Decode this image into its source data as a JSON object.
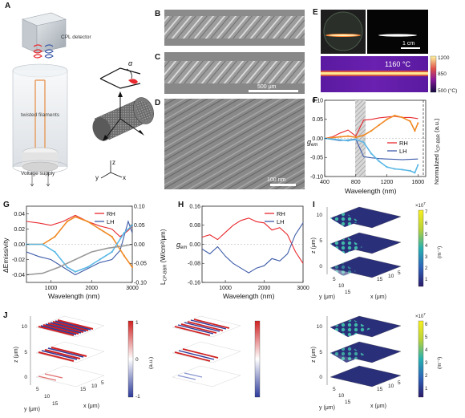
{
  "panel_letters": [
    "A",
    "B",
    "C",
    "D",
    "E",
    "F",
    "G",
    "H",
    "I",
    "J"
  ],
  "panelA": {
    "detector": "CPL detector",
    "filaments": "twisted filaments",
    "supply": "Voltage supply",
    "alpha": "α",
    "axes": {
      "z": "z",
      "y": "y",
      "x": "x"
    }
  },
  "panelC": {
    "scale": "500 μm"
  },
  "panelD": {
    "scale": "100 nm"
  },
  "panelE": {
    "scale": "1 cm",
    "temp": "1160 °C",
    "colorbar": [
      "1200",
      "850",
      "500 (°C)"
    ]
  },
  "panelF": {
    "ylabel": "g",
    "ylabel_sub": "em",
    "y2label": "Normalized I",
    "y2label_sub": "CP-BBR",
    "y2label_tail": " (a.u.)",
    "xlabel": "Wavelength (nm)",
    "legend": [
      "RH",
      "LH"
    ],
    "xticks": [
      "400",
      "800",
      "1200",
      "1600"
    ],
    "yticks": [
      "0.10",
      "0.05",
      "0.00",
      "-0.05",
      "-0.10"
    ]
  },
  "panelG": {
    "ylabel": "ΔEmissivity",
    "y2label": "L",
    "y2label_sub": "CP-BBR",
    "y2label_tail": " (W/cm²/μm)",
    "xlabel": "Wavelength (nm)",
    "legend": [
      "RH",
      "LH"
    ],
    "xticks": [
      "1000",
      "2000",
      "3000"
    ],
    "yticks": [
      "0.04",
      "0.02",
      "0.00",
      "-0.02",
      "-0.04"
    ],
    "y2ticks": [
      "0.10",
      "0.05",
      "0.00",
      "-0.05",
      "-0.10"
    ]
  },
  "panelH": {
    "ylabel": "g",
    "ylabel_sub": "em",
    "xlabel": "Wavelength (nm)",
    "legend": [
      "RH",
      "LH"
    ],
    "xticks": [
      "1000",
      "2000",
      "3000"
    ],
    "yticks": [
      "0.16",
      "0.08",
      "0.00",
      "-0.08",
      "-0.16"
    ]
  },
  "panelI": {
    "zlabel": "z (μm)",
    "ylabel": "y (μm)",
    "xlabel": "x (μm)",
    "zticks": [
      "10",
      "5",
      "0"
    ],
    "yticks": [
      "5",
      "10",
      "15"
    ],
    "xticks": [
      "5",
      "10",
      "15"
    ],
    "exponent": "×10",
    "exponent_sup": "7",
    "unit": "(m⁻¹)",
    "cb_ticks": [
      "7",
      "6",
      "5",
      "4",
      "3",
      "2",
      "1"
    ]
  },
  "panelJ": {
    "zlabel": "z (μm)",
    "ylabel": "y (μm)",
    "xlabel": "x (μm)",
    "zticks": [
      "10",
      "5",
      "0"
    ],
    "yticks": [
      "5",
      "10",
      "15"
    ],
    "xticks": [
      "5",
      "10",
      "15"
    ],
    "unit": "(a.u.)",
    "cb_ticks": [
      "1",
      "0",
      "-1"
    ],
    "exponent": "×10",
    "exponent_sup": "7",
    "unit2": "(m⁻¹)",
    "cb2_ticks": [
      "6",
      "5",
      "4",
      "3",
      "2",
      "1"
    ]
  },
  "colors": {
    "rh": "#e8292e",
    "lh": "#3d5ba9",
    "orange": "#f08a24",
    "lightblue": "#5bb8e6",
    "gray": "#9a9a9a"
  },
  "chart_data": [
    {
      "panel": "F",
      "type": "line",
      "xlabel": "Wavelength (nm)",
      "ylabel": "g_em",
      "xlim": [
        400,
        1700
      ],
      "ylim": [
        -0.1,
        0.1
      ],
      "series": [
        {
          "name": "RH",
          "x": [
            400,
            500,
            600,
            700,
            800,
            900,
            1000,
            1100,
            1200,
            1300,
            1400,
            1500,
            1600
          ],
          "y": [
            0.0,
            0.004,
            0.014,
            0.022,
            0.006,
            0.048,
            0.05,
            0.054,
            0.056,
            0.058,
            0.055,
            0.055,
            0.052
          ]
        },
        {
          "name": "LH",
          "x": [
            400,
            500,
            600,
            700,
            800,
            900,
            1000,
            1100,
            1200,
            1300,
            1400,
            1500,
            1600
          ],
          "y": [
            0.0,
            -0.003,
            -0.006,
            -0.004,
            -0.002,
            -0.048,
            -0.051,
            -0.053,
            -0.054,
            -0.055,
            -0.056,
            -0.055,
            -0.054
          ]
        },
        {
          "x": [
            400,
            500,
            600,
            700,
            800,
            900,
            1000,
            1100,
            1200,
            1300,
            1400,
            1500,
            1560,
            1600
          ],
          "y": [
            0.0,
            0.002,
            0.004,
            0.006,
            0.003,
            0.008,
            0.02,
            0.035,
            0.05,
            0.06,
            0.055,
            0.045,
            0.02,
            0.04
          ]
        },
        {
          "x": [
            400,
            500,
            600,
            700,
            800,
            900,
            1000,
            1100,
            1200,
            1300,
            1400,
            1500,
            1560,
            1600
          ],
          "y": [
            0.0,
            -0.002,
            -0.004,
            -0.006,
            -0.003,
            -0.01,
            -0.04,
            -0.06,
            -0.075,
            -0.08,
            -0.082,
            -0.085,
            -0.09,
            -0.07
          ]
        }
      ]
    },
    {
      "panel": "G",
      "type": "line",
      "xlabel": "Wavelength (nm)",
      "ylabel": "ΔEmissivity",
      "xlim": [
        400,
        3000
      ],
      "ylim": [
        -0.05,
        0.05
      ],
      "series": [
        {
          "name": "RH",
          "x": [
            400,
            700,
            1000,
            1300,
            1600,
            1900,
            2200,
            2500,
            2700,
            2900,
            3000
          ],
          "y": [
            0.03,
            0.028,
            0.025,
            0.03,
            0.038,
            0.03,
            0.024,
            0.02,
            0.01,
            0.018,
            0.024
          ]
        },
        {
          "name": "LH",
          "x": [
            400,
            700,
            1000,
            1300,
            1600,
            1900,
            2200,
            2500,
            2700,
            2900,
            3000
          ],
          "y": [
            -0.01,
            -0.016,
            -0.02,
            -0.03,
            -0.04,
            -0.032,
            -0.024,
            -0.02,
            -0.008,
            0.03,
            0.015
          ]
        },
        {
          "x": [
            400,
            800,
            1100,
            1400,
            1600,
            1900,
            2200,
            2500,
            2800,
            3000
          ],
          "y": [
            0.0,
            0.0,
            0.01,
            0.03,
            0.036,
            0.03,
            0.02,
            0.01,
            -0.015,
            -0.03
          ]
        },
        {
          "x": [
            400,
            800,
            1100,
            1400,
            1600,
            1900,
            2200,
            2500,
            2800,
            3000
          ],
          "y": [
            0.0,
            0.0,
            -0.01,
            -0.03,
            -0.036,
            -0.03,
            -0.02,
            -0.01,
            0.015,
            0.025
          ]
        },
        {
          "x": [
            400,
            800,
            1200,
            1600,
            2000,
            2400,
            2800,
            3000
          ],
          "y": [
            -0.04,
            -0.038,
            -0.03,
            -0.02,
            -0.01,
            -0.005,
            -0.002,
            0.0
          ]
        }
      ]
    },
    {
      "panel": "H",
      "type": "line",
      "xlabel": "Wavelength (nm)",
      "ylabel": "g_em",
      "xlim": [
        400,
        3000
      ],
      "ylim": [
        -0.16,
        0.16
      ],
      "series": [
        {
          "name": "RH",
          "x": [
            400,
            600,
            800,
            1000,
            1200,
            1400,
            1600,
            1800,
            2000,
            2200,
            2400,
            2600,
            2800,
            3000
          ],
          "y": [
            0.03,
            0.04,
            0.02,
            0.05,
            0.08,
            0.1,
            0.11,
            0.095,
            0.09,
            0.06,
            0.07,
            0.04,
            -0.03,
            -0.08
          ]
        },
        {
          "name": "LH",
          "x": [
            400,
            600,
            800,
            1000,
            1200,
            1400,
            1600,
            1800,
            2000,
            2200,
            2400,
            2600,
            2800,
            3000
          ],
          "y": [
            -0.02,
            -0.04,
            -0.01,
            -0.05,
            -0.08,
            -0.1,
            -0.12,
            -0.1,
            -0.09,
            -0.06,
            -0.07,
            -0.04,
            0.04,
            0.09
          ]
        }
      ]
    }
  ]
}
